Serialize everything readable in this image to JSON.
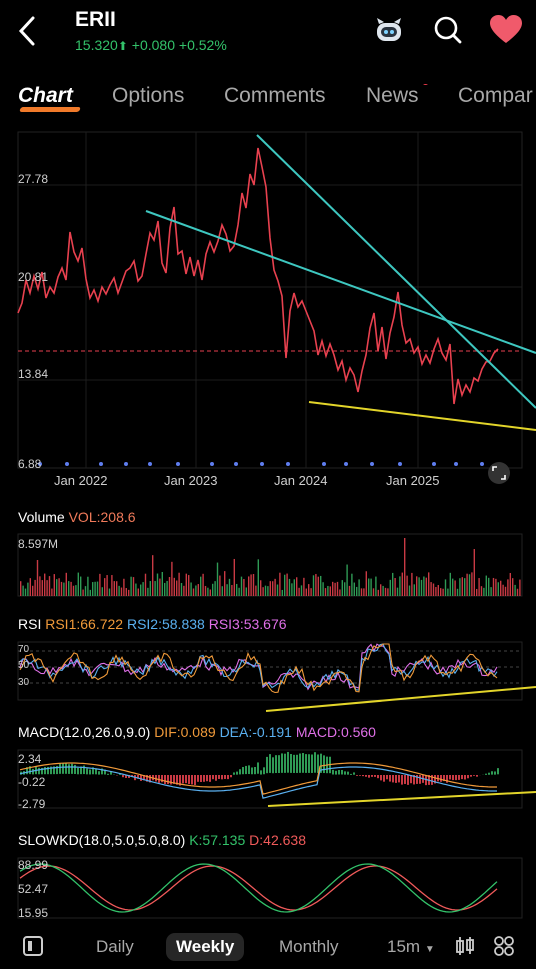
{
  "header": {
    "symbol": "ERII",
    "price": "15.320",
    "change": "+0.080",
    "change_pct": "+0.52%",
    "accent_up": "#33c26a"
  },
  "tabs": [
    {
      "label": "Chart",
      "active": true
    },
    {
      "label": "Options"
    },
    {
      "label": "Comments"
    },
    {
      "label": "News",
      "badge": true
    },
    {
      "label": "Compar"
    }
  ],
  "main_chart": {
    "y_ticks": [
      "27.78",
      "20.81",
      "13.84",
      "6.88"
    ],
    "x_ticks": [
      "Jan 2022",
      "Jan 2023",
      "Jan 2024",
      "Jan 2025"
    ],
    "line_color": "#e8414f",
    "trendline_color": "#3ec7c0",
    "support_color": "#e3d52a"
  },
  "volume": {
    "label": "Volume",
    "value_label": "VOL:208.6",
    "max_label": "8.597M"
  },
  "rsi": {
    "label": "RSI",
    "rsi1": "RSI1:66.722",
    "rsi2": "RSI2:58.838",
    "rsi3": "RSI3:53.676",
    "levels": [
      "70",
      "50",
      "30"
    ]
  },
  "macd": {
    "label": "MACD(12.0,26.0,9.0)",
    "dif": "DIF:0.089",
    "dea": "DEA:-0.191",
    "macd": "MACD:0.560",
    "y_ticks": [
      "2.34",
      "-0.22",
      "-2.79"
    ]
  },
  "slowkd": {
    "label": "SLOWKD(18.0,5.0,5.0,8.0)",
    "k": "K:57.135",
    "d": "D:42.638",
    "y_ticks": [
      "88.99",
      "52.47",
      "15.95"
    ]
  },
  "bottom_nav": {
    "daily": "Daily",
    "weekly": "Weekly",
    "monthly": "Monthly",
    "interval": "15m"
  }
}
